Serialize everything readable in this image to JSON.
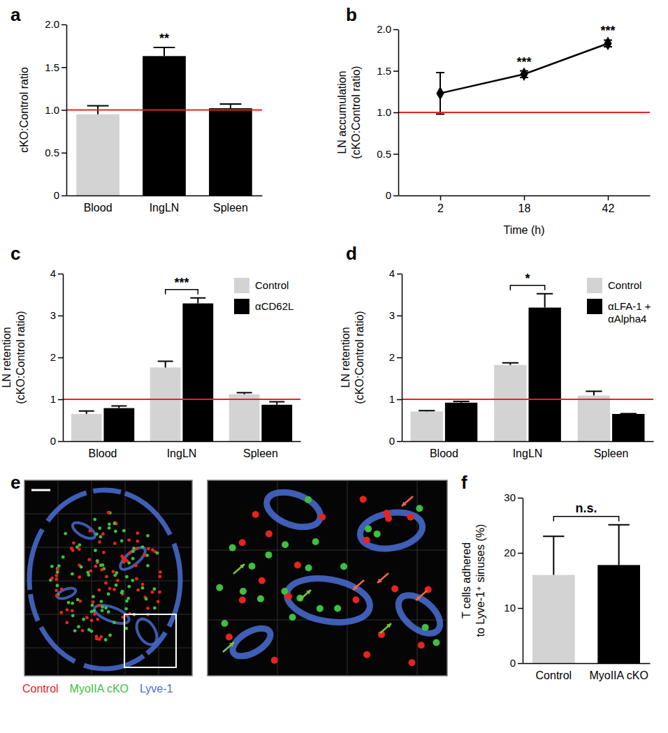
{
  "chart_data": [
    {
      "label": "a",
      "type": "bar",
      "categories": [
        "Blood",
        "IngLN",
        "Spleen"
      ],
      "values": [
        0.95,
        1.63,
        1.02
      ],
      "errors": [
        0.1,
        0.1,
        0.05
      ],
      "colors": [
        "#d3d3d3",
        "#000000",
        "#000000"
      ],
      "ylabel": "cKO:Control ratio",
      "ylim": [
        0,
        2
      ],
      "yticks": [
        0,
        0.5,
        {
          "value": 1,
          "label": "1.0"
        },
        1.5,
        {
          "value": 2,
          "label": "2.0"
        }
      ],
      "reference_line": 1,
      "annotations": [
        {
          "x": "IngLN",
          "text": "**"
        }
      ]
    },
    {
      "label": "b",
      "type": "line",
      "categories": [
        "2",
        "18",
        "42"
      ],
      "values": [
        1.23,
        1.46,
        1.83
      ],
      "errors": [
        0.25,
        0.04,
        0.04
      ],
      "color": "#000000",
      "marker": "diamond",
      "xlabel": "Time (h)",
      "ylabel": "LN accumulation\n(cKO:Control ratio)",
      "ylim": [
        0,
        2
      ],
      "yticks": [
        0,
        0.5,
        {
          "value": 1,
          "label": "1.0"
        },
        1.5,
        {
          "value": 2,
          "label": "2.0"
        }
      ],
      "reference_line": 1,
      "annotations": [
        {
          "x": "18",
          "text": "***"
        },
        {
          "x": "42",
          "text": "***"
        }
      ]
    },
    {
      "label": "c",
      "type": "bar",
      "categories": [
        "Blood",
        "IngLN",
        "Spleen"
      ],
      "series": [
        {
          "name": "Control",
          "color": "#d3d3d3",
          "values": [
            0.65,
            1.76,
            1.12
          ],
          "errors": [
            0.07,
            0.15,
            0.04
          ]
        },
        {
          "name": "αCD62L",
          "color": "#000000",
          "values": [
            0.79,
            3.29,
            0.87
          ],
          "errors": [
            0.05,
            0.13,
            0.07
          ]
        }
      ],
      "ylabel": "LN retention\n(cKO:Control ratio)",
      "ylim": [
        0,
        4
      ],
      "yticks": [
        0,
        1,
        2,
        3,
        4
      ],
      "legend": "top-right",
      "reference_line": 1,
      "annotations": [
        {
          "x": "IngLN",
          "text": "***"
        }
      ]
    },
    {
      "label": "d",
      "type": "bar",
      "categories": [
        "Blood",
        "IngLN",
        "Spleen"
      ],
      "series": [
        {
          "name": "Control",
          "color": "#d3d3d3",
          "values": [
            0.71,
            1.82,
            1.09
          ],
          "errors": [
            0.02,
            0.05,
            0.1
          ]
        },
        {
          "name": "αLFA-1 +\nαAlpha4",
          "color": "#000000",
          "values": [
            0.92,
            3.19,
            0.65
          ],
          "errors": [
            0.03,
            0.33,
            0.01
          ]
        }
      ],
      "ylabel": "LN retention\n(cKO:Control ratio)",
      "ylim": [
        0,
        4
      ],
      "yticks": [
        0,
        1,
        2,
        3,
        4
      ],
      "legend": "top-right",
      "reference_line": 1,
      "annotations": [
        {
          "x": "IngLN",
          "text": "*"
        }
      ]
    },
    {
      "label": "f",
      "type": "bar",
      "categories": [
        "Control",
        "MyoIIA cKO"
      ],
      "values": [
        16,
        17.8
      ],
      "errors": [
        7,
        7.3
      ],
      "colors": [
        "#d3d3d3",
        "#000000"
      ],
      "ylabel": "T cells adhered\nto Lyve-1⁺ sinuses (%)",
      "ylim": [
        0,
        30
      ],
      "yticks": [
        0,
        10,
        20,
        30
      ],
      "annotations": [
        {
          "text": "n.s."
        }
      ]
    }
  ],
  "image_panel": {
    "label": "e",
    "channels": [
      {
        "text": "Control",
        "color": "#e8231f"
      },
      {
        "text": "MyoIIA cKO",
        "color": "#3fbf3f"
      },
      {
        "text": "Lyve-1",
        "color": "#4a6fd6"
      }
    ]
  }
}
